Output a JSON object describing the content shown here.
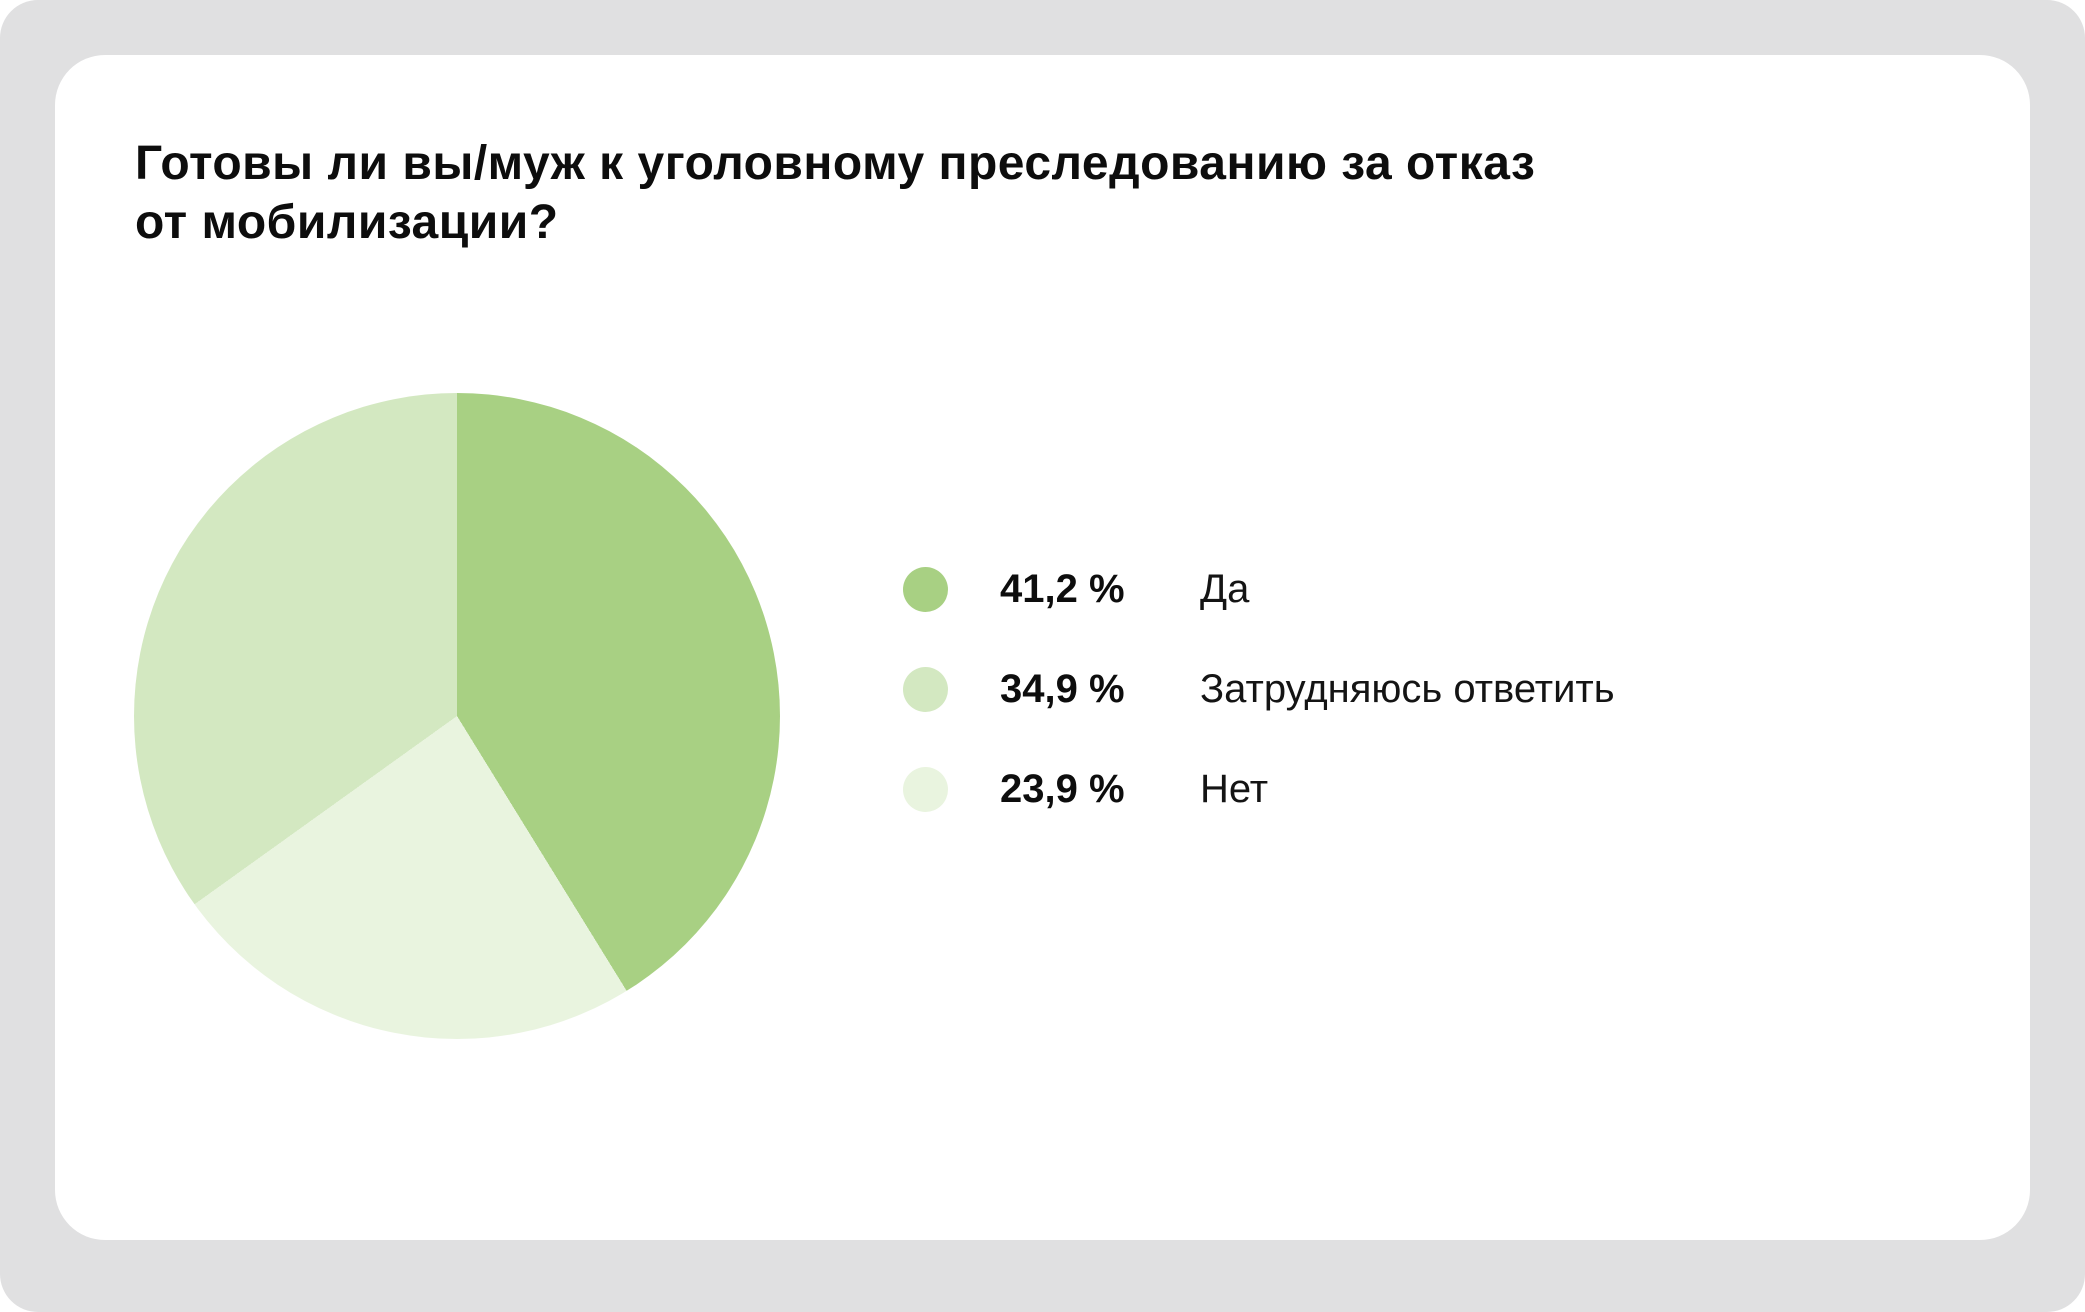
{
  "card": {
    "title": "Готовы ли вы/муж к уголовному преследованию за отказ от мобилизации?",
    "title_lines": [
      "Готовы ли вы/муж к уголовному преследованию за отказ",
      "от мобилизации?"
    ]
  },
  "chart_data": {
    "type": "pie",
    "title": "Готовы ли вы/муж к уголовному преследованию за отказ от мобилизации?",
    "slices": [
      {
        "label": "Да",
        "value_pct": 41.2,
        "display_value": "41,2 %",
        "color": "#a8d083"
      },
      {
        "label": "Затрудняюсь ответить",
        "value_pct": 34.9,
        "display_value": "34,9 %",
        "color": "#d3e8c1"
      },
      {
        "label": "Нет",
        "value_pct": 23.9,
        "display_value": "23,9 %",
        "color": "#e9f4df"
      }
    ],
    "start_angle_deg": 0,
    "direction": "clockwise",
    "clockwise_slice_order": [
      0,
      2,
      1
    ],
    "legend_position": "right",
    "data_labels": "legend-only"
  },
  "colors": {
    "frame_background": "#e0e0e1",
    "card_background": "#ffffff",
    "text": "#0d0d0d"
  }
}
